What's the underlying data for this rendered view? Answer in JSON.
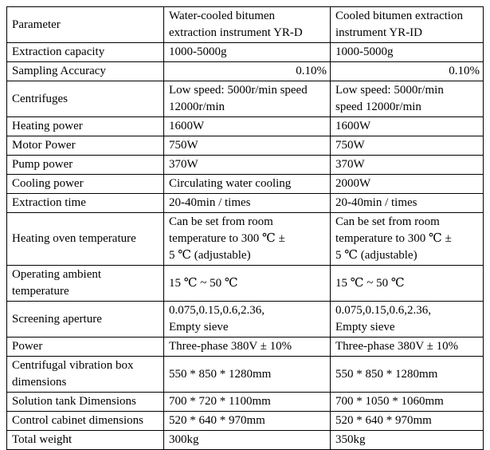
{
  "colors": {
    "background": "#ffffff",
    "border": "#000000",
    "text": "#000000"
  },
  "table": {
    "header": {
      "param": "Parameter",
      "yrd": "Water-cooled bitumen\nextraction instrument YR-D",
      "yrid": "Cooled bitumen extraction\ninstrument YR-ID"
    },
    "rows": [
      {
        "param": "Extraction capacity",
        "yrd": "1000-5000g",
        "yrid": "1000-5000g"
      },
      {
        "param": "Sampling Accuracy",
        "yrd": "0.10%",
        "yrid": "0.10%"
      },
      {
        "param": "Centrifuges",
        "yrd": "Low speed: 5000r/min speed\n12000r/min",
        "yrid": "Low speed: 5000r/min\nspeed 12000r/min"
      },
      {
        "param": "Heating power",
        "yrd": "1600W",
        "yrid": "1600W"
      },
      {
        "param": "Motor Power",
        "yrd": "750W",
        "yrid": "750W"
      },
      {
        "param": "Pump power",
        "yrd": "370W",
        "yrid": "370W"
      },
      {
        "param": "Cooling power",
        "yrd": "Circulating water cooling",
        "yrid": "2000W"
      },
      {
        "param": "Extraction time",
        "yrd": "20-40min / times",
        "yrid": "20-40min / times"
      },
      {
        "param": "Heating oven temperature",
        "yrd": "Can be set from room\ntemperature to 300 ℃ ±\n5 ℃ (adjustable)",
        "yrid": "Can be set from room\ntemperature to 300 ℃ ±\n5 ℃ (adjustable)"
      },
      {
        "param": "Operating ambient\ntemperature",
        "yrd": "15 ℃ ~ 50 ℃",
        "yrid": "15 ℃ ~ 50 ℃"
      },
      {
        "param": "Screening aperture",
        "yrd": "0.075,0.15,0.6,2.36,\nEmpty sieve",
        "yrid": "0.075,0.15,0.6,2.36,\nEmpty sieve"
      },
      {
        "param": "Power",
        "yrd": "Three-phase 380V ± 10%",
        "yrid": "Three-phase 380V ± 10%"
      },
      {
        "param": "Centrifugal vibration box\ndimensions",
        "yrd": "550 * 850 * 1280mm",
        "yrid": "550 * 850 * 1280mm"
      },
      {
        "param": "Solution tank Dimensions",
        "yrd": "700 * 720 * 1100mm",
        "yrid": "700 * 1050 * 1060mm"
      },
      {
        "param": "Control cabinet dimensions",
        "yrd": "520 * 640 * 970mm",
        "yrid": "520 * 640 * 970mm"
      },
      {
        "param": "Total weight",
        "yrd": "300kg",
        "yrid": "350kg"
      }
    ]
  }
}
